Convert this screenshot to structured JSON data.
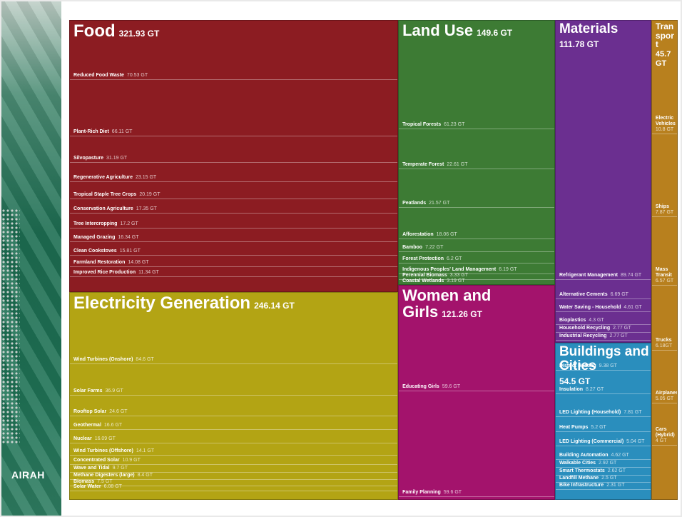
{
  "logo": "AIRAH",
  "chart_data": {
    "type": "treemap",
    "sectors": [
      {
        "name": "Food",
        "value": 321.93,
        "value_label": "321.93 GT",
        "color": "#8c1c22",
        "items": [
          {
            "name": "Reduced Food Waste",
            "value": 70.53,
            "value_label": "70.53 GT"
          },
          {
            "name": "Plant-Rich Diet",
            "value": 66.11,
            "value_label": "66.11 GT"
          },
          {
            "name": "Silvopasture",
            "value": 31.19,
            "value_label": "31.19 GT"
          },
          {
            "name": "Regenerative Agriculture",
            "value": 23.15,
            "value_label": "23.15 GT"
          },
          {
            "name": "Tropical Staple Tree Crops",
            "value": 20.19,
            "value_label": "20.19 GT"
          },
          {
            "name": "Conservation Agriculture",
            "value": 17.35,
            "value_label": "17.35 GT"
          },
          {
            "name": "Tree Intercropping",
            "value": 17.2,
            "value_label": "17.2 GT"
          },
          {
            "name": "Managed Grazing",
            "value": 16.34,
            "value_label": "16.34 GT"
          },
          {
            "name": "Clean Cookstoves",
            "value": 15.81,
            "value_label": "15.81 GT"
          },
          {
            "name": "Farmland Restoration",
            "value": 14.08,
            "value_label": "14.08 GT"
          },
          {
            "name": "Improved Rice Production",
            "value": 11.34,
            "value_label": "11.34 GT"
          }
        ]
      },
      {
        "name": "Electricity Generation",
        "value": 246.14,
        "value_label": "246.14 GT",
        "color": "#b3a414",
        "items": [
          {
            "name": "Wind Turbines (Onshore)",
            "value": 84.6,
            "value_label": "84.6 GT"
          },
          {
            "name": "Solar Farms",
            "value": 36.9,
            "value_label": "36.9 GT"
          },
          {
            "name": "Rooftop Solar",
            "value": 24.6,
            "value_label": "24.6 GT"
          },
          {
            "name": "Geothermal",
            "value": 16.6,
            "value_label": "16.6 GT"
          },
          {
            "name": "Nuclear",
            "value": 16.09,
            "value_label": "16.09 GT"
          },
          {
            "name": "Wind Turbines (Offshore)",
            "value": 14.1,
            "value_label": "14.1 GT"
          },
          {
            "name": "Concentrated Solar",
            "value": 10.9,
            "value_label": "10.9 GT"
          },
          {
            "name": "Wave and Tidal",
            "value": 9.7,
            "value_label": "9.7 GT"
          },
          {
            "name": "Methane Digesters (large)",
            "value": 8.4,
            "value_label": "8.4 GT"
          },
          {
            "name": "Biomass",
            "value": 7.5,
            "value_label": "7.5 GT"
          },
          {
            "name": "Solar Water",
            "value": 6.08,
            "value_label": "6.08 GT"
          }
        ]
      },
      {
        "name": "Land Use",
        "value": 149.6,
        "value_label": "149.6 GT",
        "color": "#3d7b34",
        "items": [
          {
            "name": "Tropical Forests",
            "value": 61.23,
            "value_label": "61.23 GT"
          },
          {
            "name": "Temperate Forest",
            "value": 22.61,
            "value_label": "22.61 GT"
          },
          {
            "name": "Peatlands",
            "value": 21.57,
            "value_label": "21.57 GT"
          },
          {
            "name": "Afforestation",
            "value": 18.06,
            "value_label": "18.06 GT"
          },
          {
            "name": "Bamboo",
            "value": 7.22,
            "value_label": "7.22 GT"
          },
          {
            "name": "Forest Protection",
            "value": 6.2,
            "value_label": "6.2 GT"
          },
          {
            "name": "Indigenous Peoples' Land Management",
            "value": 6.19,
            "value_label": "6.19 GT"
          },
          {
            "name": "Perennial Biomass",
            "value": 3.33,
            "value_label": "3.33 GT"
          },
          {
            "name": "Coastal Wetlands",
            "value": 3.19,
            "value_label": "3.19 GT"
          }
        ]
      },
      {
        "name": "Women and Girls",
        "value": 121.26,
        "value_label": "121.26 GT",
        "color": "#a3136c",
        "items": [
          {
            "name": "Educating Girls",
            "value": 59.6,
            "value_label": "59.6 GT"
          },
          {
            "name": "Family Planning",
            "value": 59.6,
            "value_label": "59.6 GT"
          }
        ]
      },
      {
        "name": "Materials",
        "value": 111.78,
        "value_label": "111.78 GT",
        "color": "#6b2f90",
        "items": [
          {
            "name": "Refrigerant Management",
            "value": 89.74,
            "value_label": "89.74 GT"
          },
          {
            "name": "Alternative Cements",
            "value": 6.69,
            "value_label": "6.69 GT"
          },
          {
            "name": "Water Saving - Household",
            "value": 4.61,
            "value_label": "4.61 GT"
          },
          {
            "name": "Bioplastics",
            "value": 4.3,
            "value_label": "4.3 GT"
          },
          {
            "name": "Household Recycling",
            "value": 2.77,
            "value_label": "2.77 GT"
          },
          {
            "name": "Industrial Recycling",
            "value": 2.77,
            "value_label": "2.77 GT"
          }
        ]
      },
      {
        "name": "Buildings and Cities",
        "value": 54.5,
        "value_label": "54.5 GT",
        "color": "#2a8ebd",
        "items": [
          {
            "name": "District Heating",
            "value": 9.38,
            "value_label": "9.38 GT"
          },
          {
            "name": "Insulation",
            "value": 8.27,
            "value_label": "8.27 GT"
          },
          {
            "name": "LED Lighting (Household)",
            "value": 7.81,
            "value_label": "7.81 GT"
          },
          {
            "name": "Heat Pumps",
            "value": 5.2,
            "value_label": "5.2 GT"
          },
          {
            "name": "LED Lighting (Commercial)",
            "value": 5.04,
            "value_label": "5.04 GT"
          },
          {
            "name": "Building Automation",
            "value": 4.62,
            "value_label": "4.62 GT"
          },
          {
            "name": "Walkable Cities",
            "value": 2.92,
            "value_label": "2.92 GT"
          },
          {
            "name": "Smart Thermostats",
            "value": 2.62,
            "value_label": "2.62 GT"
          },
          {
            "name": "Landfill Methane",
            "value": 2.5,
            "value_label": "2.5 GT"
          },
          {
            "name": "Bike Infrastructure",
            "value": 2.31,
            "value_label": "2.31 GT"
          }
        ]
      },
      {
        "name": "Transport",
        "value": 45.7,
        "value_label": "45.7 GT",
        "color": "#b8801e",
        "items": [
          {
            "name": "Electric Vehicles",
            "value": 10.8,
            "value_label": "10.8 GT"
          },
          {
            "name": "Ships",
            "value": 7.87,
            "value_label": "7.87 GT"
          },
          {
            "name": "Mass Transit",
            "value": 6.57,
            "value_label": "6.57 GT"
          },
          {
            "name": "Trucks",
            "value": 6.18,
            "value_label": "6.18GT"
          },
          {
            "name": "Airplanes",
            "value": 5.05,
            "value_label": "5.05 GT"
          },
          {
            "name": "Cars (Hybrid)",
            "value": 4,
            "value_label": "4 GT"
          }
        ]
      }
    ]
  }
}
